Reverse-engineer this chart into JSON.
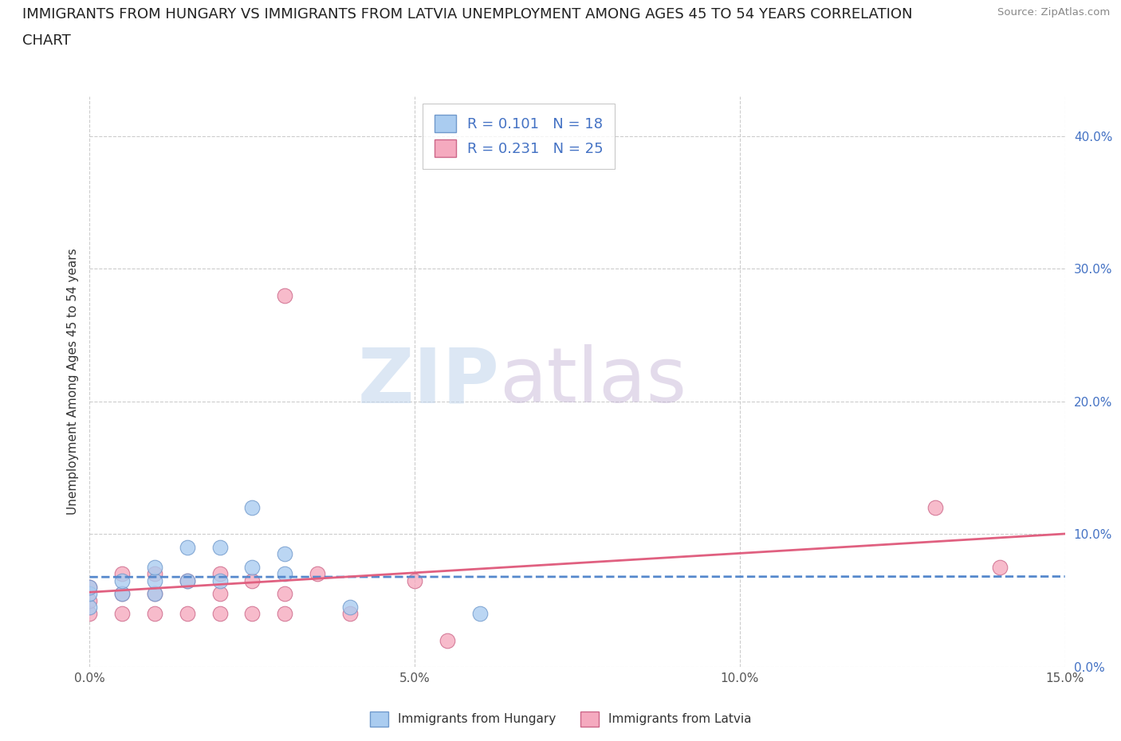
{
  "title_line1": "IMMIGRANTS FROM HUNGARY VS IMMIGRANTS FROM LATVIA UNEMPLOYMENT AMONG AGES 45 TO 54 YEARS CORRELATION",
  "title_line2": "CHART",
  "source": "Source: ZipAtlas.com",
  "ylabel": "Unemployment Among Ages 45 to 54 years",
  "xlim": [
    0.0,
    0.15
  ],
  "ylim": [
    0.0,
    0.43
  ],
  "x_ticks": [
    0.0,
    0.05,
    0.1,
    0.15
  ],
  "x_tick_labels": [
    "0.0%",
    "5.0%",
    "10.0%",
    "15.0%"
  ],
  "y_ticks": [
    0.0,
    0.1,
    0.2,
    0.3,
    0.4
  ],
  "y_tick_labels": [
    "0.0%",
    "10.0%",
    "20.0%",
    "30.0%",
    "40.0%"
  ],
  "hungary_color": "#aaccf0",
  "latvia_color": "#f5aabf",
  "hungary_edge": "#7099cc",
  "latvia_edge": "#cc6688",
  "hungary_line_color": "#5588cc",
  "latvia_line_color": "#e06080",
  "R_hungary": 0.101,
  "N_hungary": 18,
  "R_latvia": 0.231,
  "N_latvia": 25,
  "hungary_x": [
    0.0,
    0.0,
    0.0,
    0.005,
    0.005,
    0.01,
    0.01,
    0.01,
    0.015,
    0.015,
    0.02,
    0.02,
    0.025,
    0.025,
    0.03,
    0.03,
    0.04,
    0.06
  ],
  "hungary_y": [
    0.045,
    0.055,
    0.06,
    0.055,
    0.065,
    0.055,
    0.065,
    0.075,
    0.065,
    0.09,
    0.065,
    0.09,
    0.075,
    0.12,
    0.07,
    0.085,
    0.045,
    0.04
  ],
  "latvia_x": [
    0.0,
    0.0,
    0.0,
    0.005,
    0.005,
    0.005,
    0.01,
    0.01,
    0.01,
    0.015,
    0.015,
    0.02,
    0.02,
    0.02,
    0.025,
    0.025,
    0.03,
    0.03,
    0.03,
    0.035,
    0.04,
    0.05,
    0.055,
    0.13,
    0.14
  ],
  "latvia_y": [
    0.04,
    0.05,
    0.06,
    0.04,
    0.055,
    0.07,
    0.04,
    0.055,
    0.07,
    0.04,
    0.065,
    0.04,
    0.055,
    0.07,
    0.04,
    0.065,
    0.04,
    0.055,
    0.28,
    0.07,
    0.04,
    0.065,
    0.02,
    0.12,
    0.075
  ],
  "watermark_zip": "ZIP",
  "watermark_atlas": "atlas",
  "background_color": "#ffffff",
  "grid_color": "#cccccc",
  "title_fontsize": 13,
  "label_fontsize": 11,
  "tick_fontsize": 11,
  "legend_fontsize": 13
}
